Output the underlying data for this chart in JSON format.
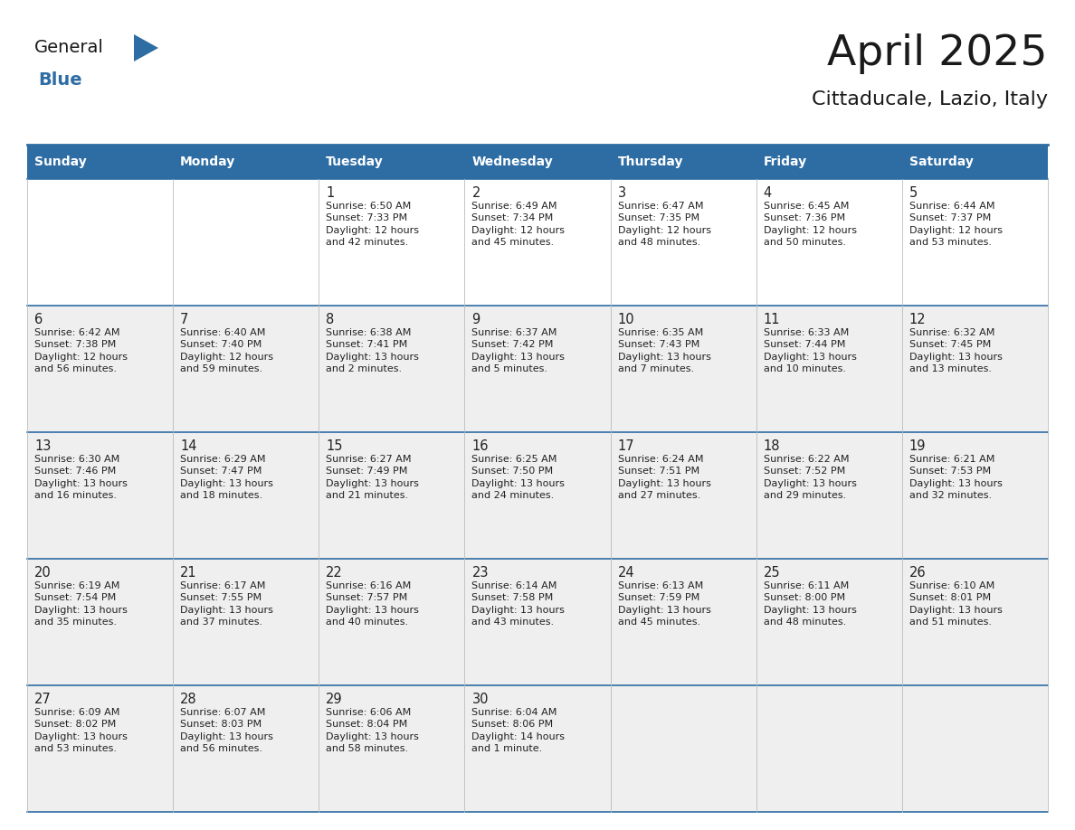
{
  "title": "April 2025",
  "subtitle": "Cittaducale, Lazio, Italy",
  "header_bg": "#2E6DA4",
  "header_text_color": "#FFFFFF",
  "cell_bg_light": "#EFEFEF",
  "cell_bg_white": "#FFFFFF",
  "border_color": "#2E6DA4",
  "text_color": "#222222",
  "day_names": [
    "Sunday",
    "Monday",
    "Tuesday",
    "Wednesday",
    "Thursday",
    "Friday",
    "Saturday"
  ],
  "days": [
    {
      "day": 1,
      "col": 2,
      "row": 0,
      "sunrise": "6:50 AM",
      "sunset": "7:33 PM",
      "daylight_line1": "Daylight: 12 hours",
      "daylight_line2": "and 42 minutes."
    },
    {
      "day": 2,
      "col": 3,
      "row": 0,
      "sunrise": "6:49 AM",
      "sunset": "7:34 PM",
      "daylight_line1": "Daylight: 12 hours",
      "daylight_line2": "and 45 minutes."
    },
    {
      "day": 3,
      "col": 4,
      "row": 0,
      "sunrise": "6:47 AM",
      "sunset": "7:35 PM",
      "daylight_line1": "Daylight: 12 hours",
      "daylight_line2": "and 48 minutes."
    },
    {
      "day": 4,
      "col": 5,
      "row": 0,
      "sunrise": "6:45 AM",
      "sunset": "7:36 PM",
      "daylight_line1": "Daylight: 12 hours",
      "daylight_line2": "and 50 minutes."
    },
    {
      "day": 5,
      "col": 6,
      "row": 0,
      "sunrise": "6:44 AM",
      "sunset": "7:37 PM",
      "daylight_line1": "Daylight: 12 hours",
      "daylight_line2": "and 53 minutes."
    },
    {
      "day": 6,
      "col": 0,
      "row": 1,
      "sunrise": "6:42 AM",
      "sunset": "7:38 PM",
      "daylight_line1": "Daylight: 12 hours",
      "daylight_line2": "and 56 minutes."
    },
    {
      "day": 7,
      "col": 1,
      "row": 1,
      "sunrise": "6:40 AM",
      "sunset": "7:40 PM",
      "daylight_line1": "Daylight: 12 hours",
      "daylight_line2": "and 59 minutes."
    },
    {
      "day": 8,
      "col": 2,
      "row": 1,
      "sunrise": "6:38 AM",
      "sunset": "7:41 PM",
      "daylight_line1": "Daylight: 13 hours",
      "daylight_line2": "and 2 minutes."
    },
    {
      "day": 9,
      "col": 3,
      "row": 1,
      "sunrise": "6:37 AM",
      "sunset": "7:42 PM",
      "daylight_line1": "Daylight: 13 hours",
      "daylight_line2": "and 5 minutes."
    },
    {
      "day": 10,
      "col": 4,
      "row": 1,
      "sunrise": "6:35 AM",
      "sunset": "7:43 PM",
      "daylight_line1": "Daylight: 13 hours",
      "daylight_line2": "and 7 minutes."
    },
    {
      "day": 11,
      "col": 5,
      "row": 1,
      "sunrise": "6:33 AM",
      "sunset": "7:44 PM",
      "daylight_line1": "Daylight: 13 hours",
      "daylight_line2": "and 10 minutes."
    },
    {
      "day": 12,
      "col": 6,
      "row": 1,
      "sunrise": "6:32 AM",
      "sunset": "7:45 PM",
      "daylight_line1": "Daylight: 13 hours",
      "daylight_line2": "and 13 minutes."
    },
    {
      "day": 13,
      "col": 0,
      "row": 2,
      "sunrise": "6:30 AM",
      "sunset": "7:46 PM",
      "daylight_line1": "Daylight: 13 hours",
      "daylight_line2": "and 16 minutes."
    },
    {
      "day": 14,
      "col": 1,
      "row": 2,
      "sunrise": "6:29 AM",
      "sunset": "7:47 PM",
      "daylight_line1": "Daylight: 13 hours",
      "daylight_line2": "and 18 minutes."
    },
    {
      "day": 15,
      "col": 2,
      "row": 2,
      "sunrise": "6:27 AM",
      "sunset": "7:49 PM",
      "daylight_line1": "Daylight: 13 hours",
      "daylight_line2": "and 21 minutes."
    },
    {
      "day": 16,
      "col": 3,
      "row": 2,
      "sunrise": "6:25 AM",
      "sunset": "7:50 PM",
      "daylight_line1": "Daylight: 13 hours",
      "daylight_line2": "and 24 minutes."
    },
    {
      "day": 17,
      "col": 4,
      "row": 2,
      "sunrise": "6:24 AM",
      "sunset": "7:51 PM",
      "daylight_line1": "Daylight: 13 hours",
      "daylight_line2": "and 27 minutes."
    },
    {
      "day": 18,
      "col": 5,
      "row": 2,
      "sunrise": "6:22 AM",
      "sunset": "7:52 PM",
      "daylight_line1": "Daylight: 13 hours",
      "daylight_line2": "and 29 minutes."
    },
    {
      "day": 19,
      "col": 6,
      "row": 2,
      "sunrise": "6:21 AM",
      "sunset": "7:53 PM",
      "daylight_line1": "Daylight: 13 hours",
      "daylight_line2": "and 32 minutes."
    },
    {
      "day": 20,
      "col": 0,
      "row": 3,
      "sunrise": "6:19 AM",
      "sunset": "7:54 PM",
      "daylight_line1": "Daylight: 13 hours",
      "daylight_line2": "and 35 minutes."
    },
    {
      "day": 21,
      "col": 1,
      "row": 3,
      "sunrise": "6:17 AM",
      "sunset": "7:55 PM",
      "daylight_line1": "Daylight: 13 hours",
      "daylight_line2": "and 37 minutes."
    },
    {
      "day": 22,
      "col": 2,
      "row": 3,
      "sunrise": "6:16 AM",
      "sunset": "7:57 PM",
      "daylight_line1": "Daylight: 13 hours",
      "daylight_line2": "and 40 minutes."
    },
    {
      "day": 23,
      "col": 3,
      "row": 3,
      "sunrise": "6:14 AM",
      "sunset": "7:58 PM",
      "daylight_line1": "Daylight: 13 hours",
      "daylight_line2": "and 43 minutes."
    },
    {
      "day": 24,
      "col": 4,
      "row": 3,
      "sunrise": "6:13 AM",
      "sunset": "7:59 PM",
      "daylight_line1": "Daylight: 13 hours",
      "daylight_line2": "and 45 minutes."
    },
    {
      "day": 25,
      "col": 5,
      "row": 3,
      "sunrise": "6:11 AM",
      "sunset": "8:00 PM",
      "daylight_line1": "Daylight: 13 hours",
      "daylight_line2": "and 48 minutes."
    },
    {
      "day": 26,
      "col": 6,
      "row": 3,
      "sunrise": "6:10 AM",
      "sunset": "8:01 PM",
      "daylight_line1": "Daylight: 13 hours",
      "daylight_line2": "and 51 minutes."
    },
    {
      "day": 27,
      "col": 0,
      "row": 4,
      "sunrise": "6:09 AM",
      "sunset": "8:02 PM",
      "daylight_line1": "Daylight: 13 hours",
      "daylight_line2": "and 53 minutes."
    },
    {
      "day": 28,
      "col": 1,
      "row": 4,
      "sunrise": "6:07 AM",
      "sunset": "8:03 PM",
      "daylight_line1": "Daylight: 13 hours",
      "daylight_line2": "and 56 minutes."
    },
    {
      "day": 29,
      "col": 2,
      "row": 4,
      "sunrise": "6:06 AM",
      "sunset": "8:04 PM",
      "daylight_line1": "Daylight: 13 hours",
      "daylight_line2": "and 58 minutes."
    },
    {
      "day": 30,
      "col": 3,
      "row": 4,
      "sunrise": "6:04 AM",
      "sunset": "8:06 PM",
      "daylight_line1": "Daylight: 14 hours",
      "daylight_line2": "and 1 minute."
    }
  ],
  "logo_general_color": "#1a1a1a",
  "logo_blue_color": "#2E6DA4",
  "logo_triangle_color": "#2E6DA4"
}
